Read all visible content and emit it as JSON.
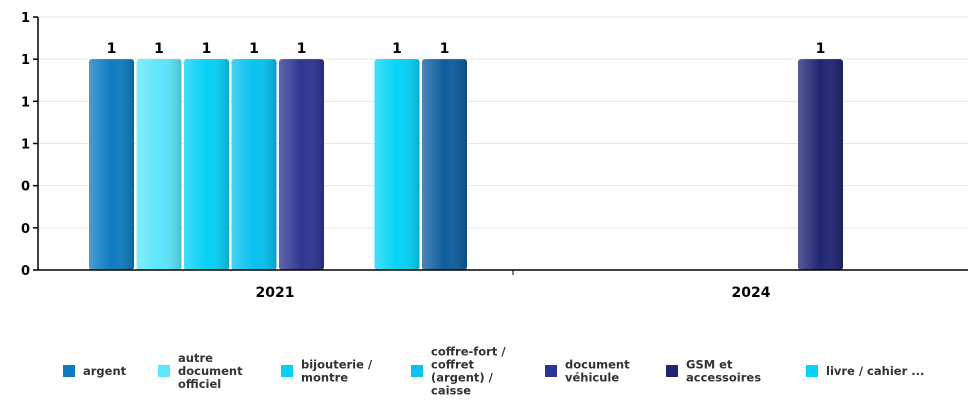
{
  "chart_data": {
    "type": "bar",
    "categories": [
      "2021",
      "2024"
    ],
    "y_tick_labels": [
      "1",
      "1",
      "1",
      "1",
      "0",
      "0",
      "0"
    ],
    "ylim": [
      0,
      1.2
    ],
    "grid": true,
    "legend_position": "bottom",
    "series": [
      {
        "name": "argent",
        "color": "#0e7cc0",
        "values": [
          1,
          null
        ]
      },
      {
        "name": "autre document officiel",
        "color": "#5ce6fa",
        "values": [
          1,
          null
        ]
      },
      {
        "name": "bijouterie / montre",
        "color": "#05d1f7",
        "values": [
          1,
          null
        ]
      },
      {
        "name": "coffre-fort / coffret (argent) / caisse",
        "color": "#07c1ef",
        "values": [
          1,
          null
        ]
      },
      {
        "name": "document véhicule",
        "color": "#2d3592",
        "values": [
          1,
          null
        ]
      },
      {
        "name": "GSM et accessoires",
        "color": "#1f2572",
        "values": [
          null,
          1
        ]
      },
      {
        "name": "livre / cahier ...",
        "color": "#05d4f8",
        "values": [
          1,
          null
        ]
      },
      {
        "name": "",
        "color": "#0e5d9e",
        "values": [
          1,
          null
        ]
      }
    ],
    "data_labels": true
  }
}
